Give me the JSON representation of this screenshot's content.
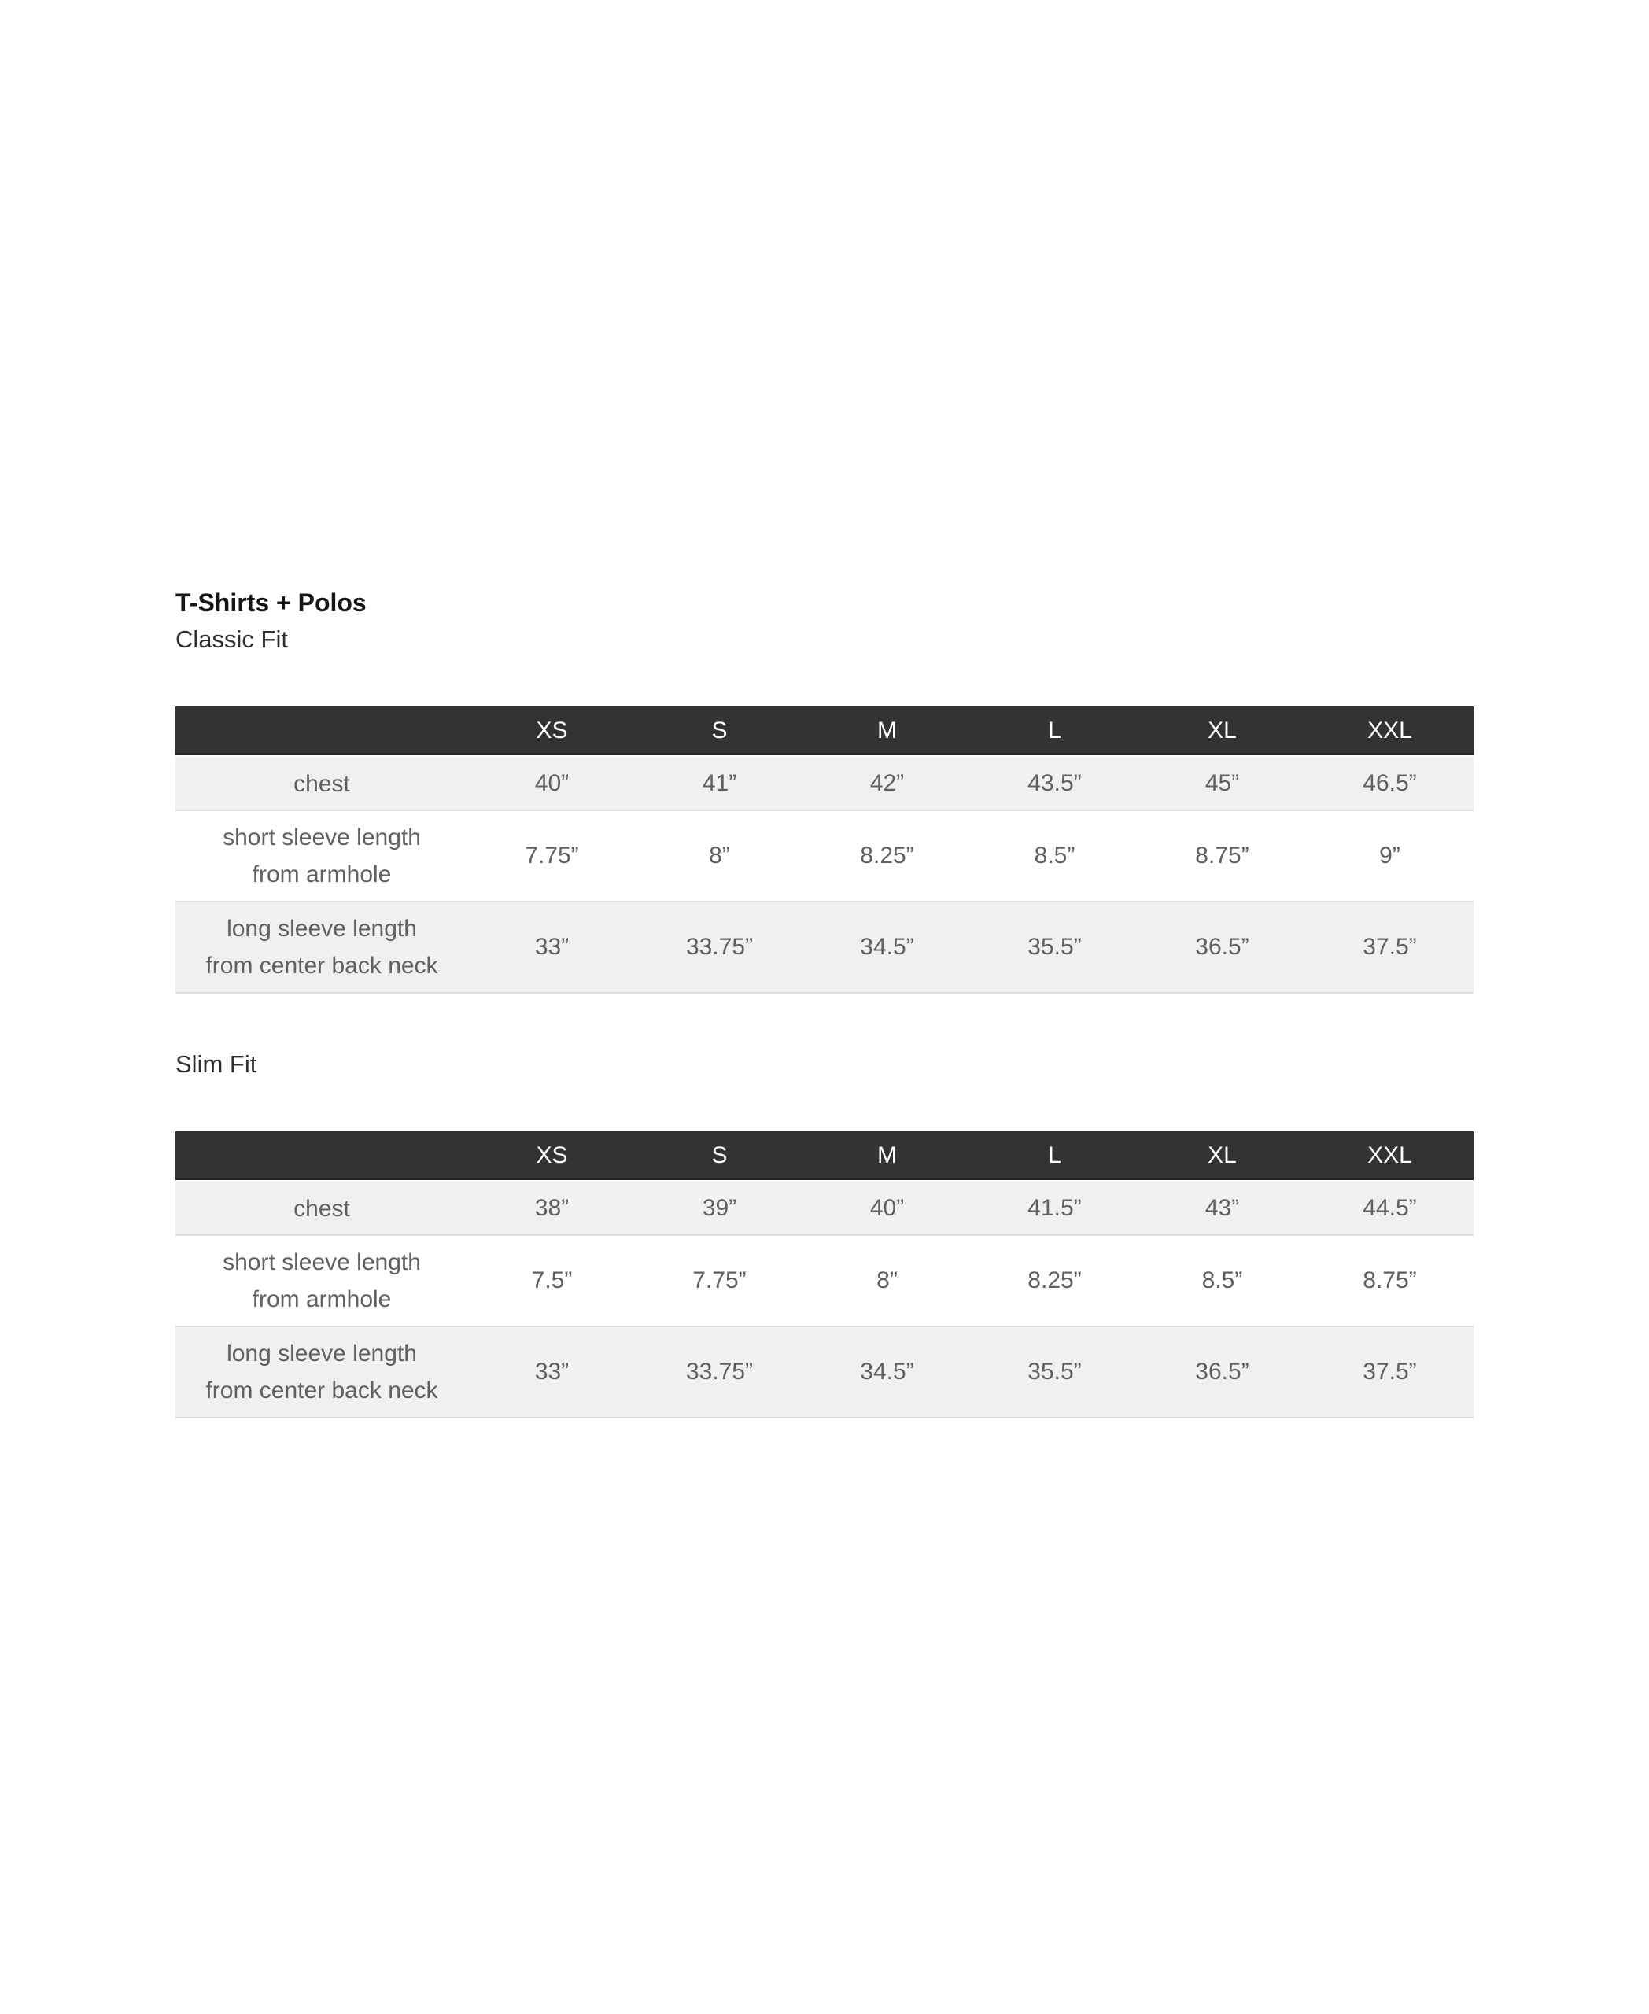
{
  "page_title": "T-Shirts + Polos",
  "sections": [
    {
      "fit_label": "Classic Fit",
      "table": {
        "size_headers": [
          "XS",
          "S",
          "M",
          "L",
          "XL",
          "XXL"
        ],
        "rows": [
          {
            "label": "chest",
            "values": [
              "40”",
              "41”",
              "42”",
              "43.5”",
              "45”",
              "46.5”"
            ]
          },
          {
            "label": "short sleeve length\nfrom armhole",
            "values": [
              "7.75”",
              "8”",
              "8.25”",
              "8.5”",
              "8.75”",
              "9”"
            ]
          },
          {
            "label": "long sleeve length\nfrom center back neck",
            "values": [
              "33”",
              "33.75”",
              "34.5”",
              "35.5”",
              "36.5”",
              "37.5”"
            ]
          }
        ]
      }
    },
    {
      "fit_label": "Slim Fit",
      "table": {
        "size_headers": [
          "XS",
          "S",
          "M",
          "L",
          "XL",
          "XXL"
        ],
        "rows": [
          {
            "label": "chest",
            "values": [
              "38”",
              "39”",
              "40”",
              "41.5”",
              "43”",
              "44.5”"
            ]
          },
          {
            "label": "short sleeve length\nfrom armhole",
            "values": [
              "7.5”",
              "7.75”",
              "8”",
              "8.25”",
              "8.5”",
              "8.75”"
            ]
          },
          {
            "label": "long sleeve length\nfrom center back neck",
            "values": [
              "33”",
              "33.75”",
              "34.5”",
              "35.5”",
              "36.5”",
              "37.5”"
            ]
          }
        ]
      }
    }
  ],
  "colors": {
    "table_header_bg": "#333333",
    "table_header_text": "#ffffff",
    "row_alt_bg": "#f0f0f0",
    "body_text": "#606060",
    "heading_text": "#161616"
  }
}
